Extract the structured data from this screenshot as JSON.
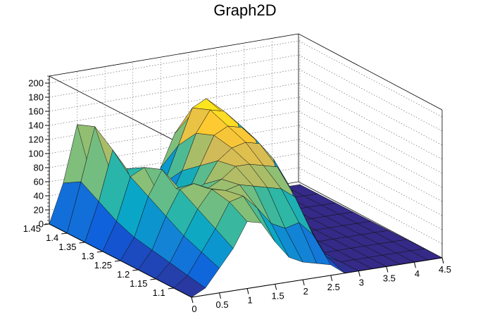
{
  "chart_data": {
    "type": "surface3d",
    "title": "Graph2D",
    "xlabel": "",
    "ylabel": "",
    "zlabel": "",
    "x_range": [
      0,
      4.5
    ],
    "y_range": [
      1.05,
      1.45
    ],
    "z_range": [
      0,
      210
    ],
    "x_ticks": [
      "0",
      "0.5",
      "1",
      "1.5",
      "2",
      "2.5",
      "3",
      "3.5",
      "4",
      "4.5"
    ],
    "y_ticks": [
      "1.1",
      "1.15",
      "1.2",
      "1.25",
      "1.3",
      "1.35",
      "1.4",
      "1.45"
    ],
    "z_ticks": [
      "0",
      "20",
      "40",
      "60",
      "80",
      "100",
      "120",
      "140",
      "160",
      "180",
      "200"
    ],
    "grid": true,
    "palette": [
      "#352a87",
      "#0f5cdd",
      "#1481d6",
      "#06a4ca",
      "#2eb7a4",
      "#87bf77",
      "#d1bb59",
      "#fec832",
      "#f9fb0e"
    ],
    "x_grid": [
      0,
      0.25,
      0.5,
      0.75,
      1,
      1.25,
      1.5,
      1.75,
      2,
      2.25,
      2.5,
      2.75,
      3,
      3.25,
      3.5,
      3.75,
      4,
      4.25,
      4.5
    ],
    "y_grid": [
      1.05,
      1.1,
      1.15,
      1.2,
      1.25,
      1.3,
      1.35,
      1.4,
      1.45
    ],
    "z_values": [
      [
        0,
        10,
        35,
        60,
        95,
        90,
        60,
        35,
        25,
        20,
        15,
        0,
        0,
        0,
        0,
        0,
        0,
        0,
        0
      ],
      [
        0,
        15,
        45,
        75,
        110,
        115,
        95,
        70,
        60,
        65,
        45,
        10,
        0,
        0,
        0,
        0,
        0,
        0,
        0
      ],
      [
        0,
        20,
        55,
        90,
        115,
        110,
        115,
        110,
        105,
        100,
        85,
        40,
        0,
        0,
        0,
        0,
        0,
        0,
        0
      ],
      [
        0,
        25,
        70,
        105,
        110,
        100,
        110,
        125,
        125,
        120,
        115,
        80,
        5,
        0,
        0,
        0,
        0,
        0,
        0
      ],
      [
        0,
        30,
        85,
        120,
        90,
        80,
        90,
        120,
        135,
        140,
        135,
        110,
        15,
        0,
        0,
        0,
        0,
        0,
        0
      ],
      [
        0,
        40,
        100,
        110,
        70,
        50,
        60,
        100,
        140,
        150,
        145,
        125,
        20,
        0,
        0,
        0,
        0,
        0,
        0
      ],
      [
        0,
        55,
        125,
        95,
        45,
        30,
        40,
        80,
        130,
        160,
        155,
        135,
        30,
        0,
        0,
        0,
        0,
        0,
        0
      ],
      [
        0,
        70,
        145,
        85,
        30,
        10,
        20,
        50,
        100,
        150,
        160,
        140,
        40,
        0,
        0,
        0,
        0,
        0,
        0
      ],
      [
        0,
        55,
        135,
        60,
        10,
        0,
        5,
        20,
        55,
        100,
        120,
        110,
        30,
        0,
        0,
        0,
        0,
        0,
        0
      ]
    ]
  }
}
